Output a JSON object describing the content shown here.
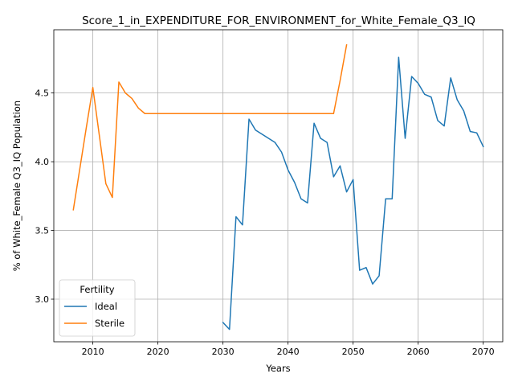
{
  "chart_data": {
    "type": "line",
    "title": "Score_1_in_EXPENDITURE_FOR_ENVIRONMENT_for_White_Female_Q3_IQ",
    "xlabel": "Years",
    "ylabel": "% of White_Female Q3_IQ Population",
    "xlim": [
      2004,
      2073
    ],
    "ylim": [
      2.69,
      4.96
    ],
    "xticks": [
      2010,
      2020,
      2030,
      2040,
      2050,
      2060,
      2070
    ],
    "yticks": [
      3.0,
      3.5,
      4.0,
      4.5
    ],
    "ytick_labels": [
      "3.0",
      "3.5",
      "4.0",
      "4.5"
    ],
    "grid": true,
    "legend": {
      "title": "Fertility",
      "location": "lower-left"
    },
    "series": [
      {
        "name": "Ideal",
        "color": "#1f77b4",
        "x": [
          2030,
          2031,
          2032,
          2033,
          2034,
          2035,
          2036,
          2037,
          2038,
          2039,
          2040,
          2041,
          2042,
          2043,
          2044,
          2045,
          2046,
          2047,
          2048,
          2049,
          2050,
          2051,
          2052,
          2053,
          2054,
          2055,
          2056,
          2057,
          2058,
          2059,
          2060,
          2061,
          2062,
          2063,
          2064,
          2065,
          2066,
          2067,
          2068,
          2069,
          2070
        ],
        "y": [
          2.83,
          2.78,
          3.6,
          3.54,
          4.31,
          4.23,
          4.2,
          4.17,
          4.14,
          4.07,
          3.94,
          3.85,
          3.73,
          3.7,
          4.28,
          4.17,
          4.14,
          3.89,
          3.97,
          3.78,
          3.87,
          3.21,
          3.23,
          3.11,
          3.17,
          3.73,
          3.73,
          4.76,
          4.17,
          4.62,
          4.57,
          4.49,
          4.47,
          4.3,
          4.26,
          4.61,
          4.45,
          4.37,
          4.22,
          4.21,
          4.11
        ]
      },
      {
        "name": "Sterile",
        "color": "#ff7f0e",
        "x": [
          2007,
          2008,
          2009,
          2010,
          2011,
          2012,
          2013,
          2014,
          2015,
          2016,
          2017,
          2018,
          2019,
          2020,
          2021,
          2022,
          2023,
          2024,
          2025,
          2026,
          2027,
          2028,
          2029,
          2030,
          2031,
          2032,
          2033,
          2034,
          2035,
          2036,
          2037,
          2038,
          2039,
          2040,
          2041,
          2042,
          2043,
          2044,
          2045,
          2046,
          2047,
          2048,
          2049
        ],
        "y": [
          3.65,
          3.95,
          4.25,
          4.54,
          4.19,
          3.84,
          3.74,
          4.58,
          4.5,
          4.46,
          4.39,
          4.35,
          4.35,
          4.35,
          4.35,
          4.35,
          4.35,
          4.35,
          4.35,
          4.35,
          4.35,
          4.35,
          4.35,
          4.35,
          4.35,
          4.35,
          4.35,
          4.35,
          4.35,
          4.35,
          4.35,
          4.35,
          4.35,
          4.35,
          4.35,
          4.35,
          4.35,
          4.35,
          4.35,
          4.35,
          4.35,
          4.59,
          4.85
        ]
      }
    ]
  }
}
